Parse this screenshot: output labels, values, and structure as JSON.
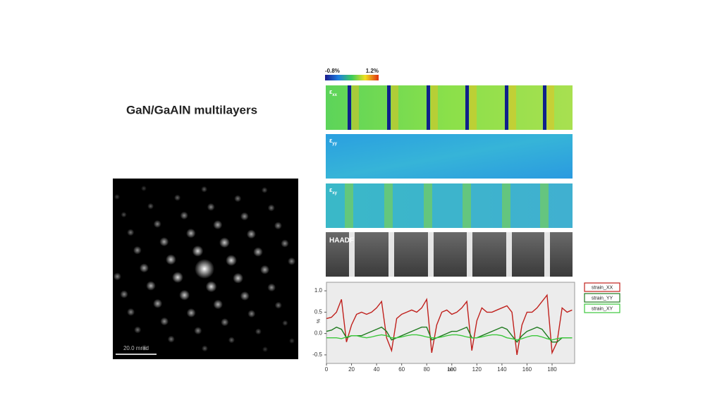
{
  "title": "GaN/GaAlN multilayers",
  "diffraction": {
    "scale_bar": "20.0 mrad"
  },
  "strain_maps": {
    "colorbar": {
      "min_label": "-0.8%",
      "max_label": "1.2%"
    },
    "maps": [
      {
        "symbol": "ε",
        "subscript": "xx"
      },
      {
        "symbol": "ε",
        "subscript": "yy"
      },
      {
        "symbol": "ε",
        "subscript": "xy"
      },
      {
        "label": "HAADF"
      }
    ]
  },
  "chart_data": {
    "type": "line",
    "x_label": "nm",
    "y_label": "%",
    "xlim": [
      0,
      198
    ],
    "ylim": [
      -0.7,
      1.2
    ],
    "xticks": [
      0,
      20,
      40,
      60,
      80,
      100,
      120,
      140,
      160,
      180
    ],
    "yticks": [
      -0.5,
      {
        "value": 0,
        "label": "0.0"
      },
      0.5,
      {
        "value": 1,
        "label": "1.0"
      }
    ],
    "x": [
      0,
      4,
      8,
      12,
      16,
      20,
      24,
      28,
      32,
      36,
      40,
      44,
      48,
      52,
      56,
      60,
      64,
      68,
      72,
      76,
      80,
      84,
      88,
      92,
      96,
      100,
      104,
      108,
      112,
      116,
      120,
      124,
      128,
      132,
      136,
      140,
      144,
      148,
      152,
      156,
      160,
      164,
      168,
      172,
      176,
      180,
      184,
      188,
      192,
      196
    ],
    "series": [
      {
        "name": "strain_XX",
        "color": "#c0201c",
        "values": [
          0.35,
          0.38,
          0.5,
          0.8,
          -0.2,
          0.2,
          0.45,
          0.5,
          0.45,
          0.5,
          0.6,
          0.75,
          -0.1,
          -0.4,
          0.35,
          0.45,
          0.5,
          0.55,
          0.5,
          0.6,
          0.8,
          -0.45,
          0.2,
          0.5,
          0.55,
          0.45,
          0.5,
          0.6,
          0.75,
          -0.4,
          0.3,
          0.6,
          0.5,
          0.5,
          0.55,
          0.6,
          0.65,
          0.5,
          -0.5,
          0.2,
          0.5,
          0.5,
          0.6,
          0.75,
          0.9,
          -0.45,
          -0.2,
          0.6,
          0.5,
          0.55
        ]
      },
      {
        "name": "strain_YY",
        "color": "#1e7a1e",
        "values": [
          0.05,
          0.08,
          0.15,
          0.1,
          -0.1,
          -0.05,
          -0.05,
          -0.05,
          0,
          0.05,
          0.1,
          0.15,
          0.05,
          -0.15,
          -0.1,
          -0.05,
          0,
          0.05,
          0.1,
          0.15,
          0.15,
          -0.15,
          -0.1,
          -0.05,
          0,
          0.05,
          0.05,
          0.1,
          0.15,
          -0.1,
          -0.1,
          -0.05,
          0,
          0.05,
          0.1,
          0.15,
          0.1,
          -0.05,
          -0.2,
          -0.05,
          0.05,
          0.1,
          0.15,
          0.1,
          -0.05,
          -0.2,
          -0.2,
          -0.1,
          -0.1,
          -0.1
        ]
      },
      {
        "name": "strain_XY",
        "color": "#3cc83c",
        "values": [
          -0.1,
          -0.1,
          -0.1,
          -0.12,
          -0.08,
          -0.05,
          -0.05,
          -0.08,
          -0.1,
          -0.08,
          -0.05,
          -0.03,
          -0.05,
          -0.1,
          -0.1,
          -0.08,
          -0.05,
          -0.03,
          -0.03,
          -0.05,
          -0.08,
          -0.1,
          -0.1,
          -0.08,
          -0.05,
          -0.03,
          -0.03,
          -0.05,
          -0.08,
          -0.1,
          -0.1,
          -0.08,
          -0.05,
          -0.03,
          -0.03,
          -0.05,
          -0.1,
          -0.12,
          -0.15,
          -0.12,
          -0.08,
          -0.05,
          -0.05,
          -0.08,
          -0.12,
          -0.15,
          -0.12,
          -0.1,
          -0.1,
          -0.1
        ]
      }
    ]
  }
}
